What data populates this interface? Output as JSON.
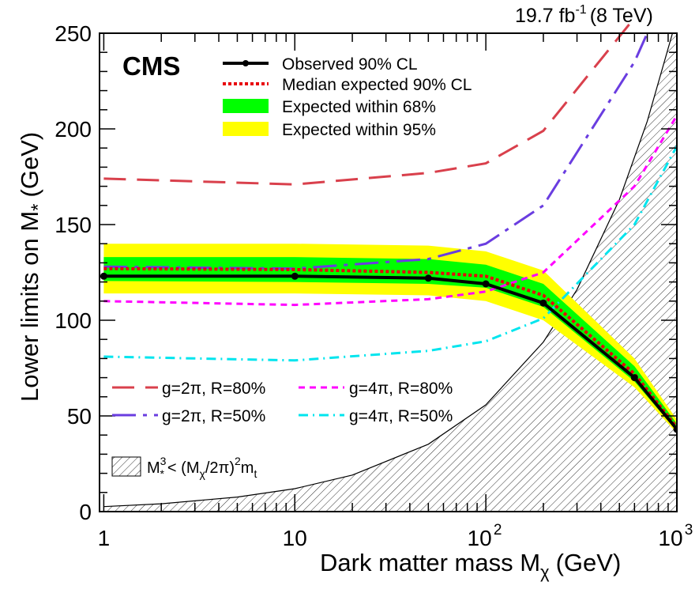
{
  "chart_data": {
    "type": "line",
    "x_scale": "log",
    "xlim": [
      0.95,
      1000
    ],
    "ylim": [
      0,
      250
    ],
    "header": "19.7 fb",
    "header_sup": "-1",
    "header_energy": "(8 TeV)",
    "experiment_label": "CMS",
    "xlabel_main": "Dark matter mass M",
    "xlabel_sub": "χ",
    "xlabel_unit": "(GeV)",
    "ylabel_main": "Lower limits on M",
    "ylabel_sub": "*",
    "ylabel_unit": "(GeV)",
    "y_ticks": [
      0,
      50,
      100,
      150,
      200,
      250
    ],
    "x_ticks": [
      {
        "value": 1,
        "label": "1",
        "sup": ""
      },
      {
        "value": 10,
        "label": "10",
        "sup": ""
      },
      {
        "value": 100,
        "label": "10",
        "sup": "2"
      },
      {
        "value": 1000,
        "label": "10",
        "sup": "3"
      }
    ],
    "legend": {
      "observed": "Observed 90% CL",
      "expected": "Median expected 90% CL",
      "band68": "Expected within 68%",
      "band95": "Expected within 95%"
    },
    "observed": {
      "x": [
        1,
        10,
        50,
        100,
        200,
        600,
        1000
      ],
      "y": [
        123,
        123,
        122,
        119,
        109,
        70,
        43
      ],
      "color": "#000000"
    },
    "expected": {
      "x": [
        1,
        10,
        50,
        100,
        200,
        600,
        1000
      ],
      "y": [
        127,
        126.5,
        125,
        123,
        113,
        72,
        44
      ],
      "color": "#e8000b"
    },
    "band68": {
      "x": [
        1,
        10,
        50,
        100,
        200,
        600,
        1000
      ],
      "lower": [
        120.5,
        120,
        119,
        117,
        107,
        68,
        42
      ],
      "upper": [
        133,
        133,
        132,
        129,
        119,
        76,
        46
      ],
      "color": "#00ff00"
    },
    "band95": {
      "x": [
        1,
        10,
        50,
        100,
        200,
        600,
        1000
      ],
      "lower": [
        114,
        114,
        113,
        110,
        100,
        65,
        41
      ],
      "upper": [
        140,
        140,
        139,
        136,
        126,
        80,
        48
      ],
      "color": "#ffff00"
    },
    "reference_curves": [
      {
        "label": "g=2π, R=80%",
        "color": "#d9404c",
        "dash": "28,14",
        "x": [
          1,
          10,
          50,
          100,
          200,
          600
        ],
        "y": [
          174,
          171,
          177,
          182,
          199,
          258
        ]
      },
      {
        "label": "g=2π, R=50%",
        "color": "#6a3de0",
        "dash": "30,9,5,9",
        "x": [
          1,
          10,
          50,
          100,
          200,
          600,
          700
        ],
        "y": [
          128,
          127,
          132,
          140,
          160,
          235,
          250
        ]
      },
      {
        "label": "g=4π, R=80%",
        "color": "#ff00ff",
        "dash": "8,6",
        "x": [
          1,
          10,
          50,
          100,
          200,
          600,
          1000
        ],
        "y": [
          110,
          108,
          111,
          115,
          125,
          170,
          207
        ]
      },
      {
        "label": "g=4π, R=50%",
        "color": "#00e5ee",
        "dash": "12,6,2,6",
        "x": [
          1,
          10,
          50,
          100,
          200,
          600,
          1000
        ],
        "y": [
          81,
          79,
          84,
          89,
          101,
          150,
          191
        ]
      }
    ],
    "excluded_region": {
      "label_main": "M",
      "label_rest": "< (M",
      "label_chi": "χ",
      "label_div": "/2π)",
      "label_mt": "m",
      "label_t": "t",
      "label_sup3": "3",
      "label_sup2": "2",
      "label_star": "*",
      "x": [
        1,
        2,
        5,
        10,
        20,
        50,
        100,
        200,
        300,
        500,
        700,
        1000
      ],
      "y": [
        2.6,
        4.1,
        7.6,
        12,
        19.1,
        35.2,
        55.8,
        88.6,
        116,
        163,
        204,
        258
      ]
    }
  }
}
